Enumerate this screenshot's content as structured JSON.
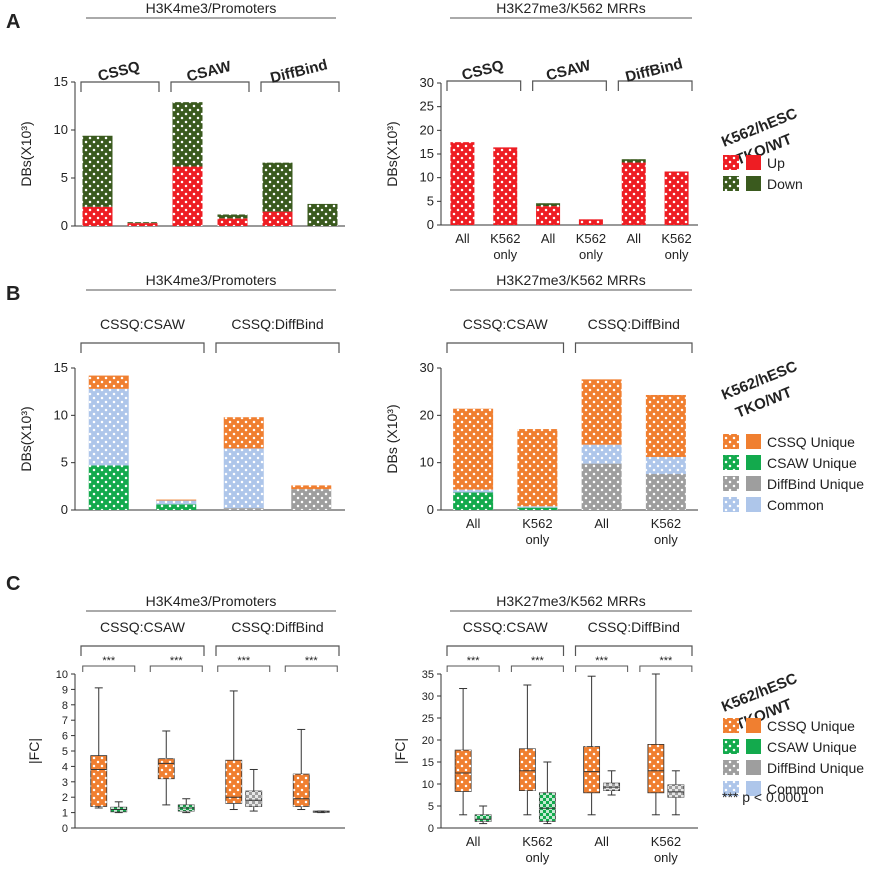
{
  "colors": {
    "up": "#ee1d23",
    "down": "#3a5a1e",
    "cssq_unique": "#f07f30",
    "csaw_unique": "#13aa4d",
    "diffbind_unique": "#9e9e9e",
    "common": "#aec6ea",
    "axis": "#333333",
    "bracket": "#555555"
  },
  "legend_a": {
    "title_lines": [
      "K562/hESC",
      "TKO/WT"
    ],
    "items": [
      {
        "label": "Up",
        "color_key": "up"
      },
      {
        "label": "Down",
        "color_key": "down"
      }
    ]
  },
  "legend_bc": {
    "title_lines": [
      "K562/hESC",
      "TKO/WT"
    ],
    "items": [
      {
        "label": "CSSQ Unique",
        "color_key": "cssq_unique"
      },
      {
        "label": "CSAW Unique",
        "color_key": "csaw_unique"
      },
      {
        "label": "DiffBind Unique",
        "color_key": "diffbind_unique"
      },
      {
        "label": "Common",
        "color_key": "common"
      }
    ]
  },
  "pvalue_note": "*** p < 0.0001",
  "chart_data": [
    {
      "id": "A1",
      "panel_letter": "A",
      "type": "bar",
      "stacked": true,
      "title": "H3K4me3/Promoters",
      "ylabel": "DBs(X10³)",
      "ylim": [
        0,
        15
      ],
      "ticks": [
        0,
        5,
        10,
        15
      ],
      "groups": [
        {
          "label": "CSSQ",
          "span": [
            0,
            1
          ]
        },
        {
          "label": "CSAW",
          "span": [
            2,
            3
          ]
        },
        {
          "label": "DiffBind",
          "span": [
            4,
            5
          ]
        }
      ],
      "categories": [
        "",
        "",
        "",
        "",
        "",
        ""
      ],
      "series": [
        {
          "name": "Up",
          "color_key": "up",
          "values": [
            2.0,
            0.3,
            6.2,
            0.8,
            1.5,
            0.0
          ]
        },
        {
          "name": "Down",
          "color_key": "down",
          "values": [
            7.4,
            0.1,
            6.7,
            0.4,
            5.1,
            2.3
          ]
        }
      ]
    },
    {
      "id": "A2",
      "type": "bar",
      "stacked": true,
      "title": "H3K27me3/K562 MRRs",
      "ylabel": "DBs(X10³)",
      "ylim": [
        0,
        30
      ],
      "ticks": [
        0,
        5,
        10,
        15,
        20,
        25,
        30
      ],
      "groups": [
        {
          "label": "CSSQ",
          "span": [
            0,
            1
          ]
        },
        {
          "label": "CSAW",
          "span": [
            2,
            3
          ]
        },
        {
          "label": "DiffBind",
          "span": [
            4,
            5
          ]
        }
      ],
      "categories": [
        "All",
        "K562 only",
        "All",
        "K562 only",
        "All",
        "K562 only"
      ],
      "series": [
        {
          "name": "Up",
          "color_key": "up",
          "values": [
            17.5,
            16.4,
            4.0,
            1.2,
            13.2,
            11.3
          ]
        },
        {
          "name": "Down",
          "color_key": "down",
          "values": [
            0.0,
            0.0,
            0.6,
            0.0,
            0.7,
            0.0
          ]
        }
      ]
    },
    {
      "id": "B1",
      "panel_letter": "B",
      "type": "bar",
      "stacked": true,
      "title": "H3K4me3/Promoters",
      "ylabel": "DBs(X10³)",
      "ylim": [
        0,
        15
      ],
      "ticks": [
        0,
        5,
        10,
        15
      ],
      "groups": [
        {
          "label": "CSSQ:CSAW",
          "span": [
            0,
            1
          ]
        },
        {
          "label": "CSSQ:DiffBind",
          "span": [
            2,
            3
          ]
        }
      ],
      "categories": [
        "",
        "",
        "",
        ""
      ],
      "series": [
        {
          "name": "CSAW Unique",
          "color_key": "csaw_unique",
          "values": [
            4.7,
            0.6,
            0.0,
            0.0
          ]
        },
        {
          "name": "DiffBind Unique",
          "color_key": "diffbind_unique",
          "values": [
            0.0,
            0.0,
            0.2,
            2.2
          ]
        },
        {
          "name": "Common",
          "color_key": "common",
          "values": [
            8.1,
            0.4,
            6.3,
            0.0
          ]
        },
        {
          "name": "CSSQ Unique",
          "color_key": "cssq_unique",
          "values": [
            1.4,
            0.1,
            3.3,
            0.4
          ]
        }
      ]
    },
    {
      "id": "B2",
      "type": "bar",
      "stacked": true,
      "title": "H3K27me3/K562 MRRs",
      "ylabel": "DBs (X10³)",
      "ylim": [
        0,
        30
      ],
      "ticks": [
        0,
        10,
        20,
        30
      ],
      "groups": [
        {
          "label": "CSSQ:CSAW",
          "span": [
            0,
            1
          ]
        },
        {
          "label": "CSSQ:DiffBind",
          "span": [
            2,
            3
          ]
        }
      ],
      "categories": [
        "All",
        "K562 only",
        "All",
        "K562 only"
      ],
      "series": [
        {
          "name": "CSAW Unique",
          "color_key": "csaw_unique",
          "values": [
            3.7,
            0.5,
            0.0,
            0.0
          ]
        },
        {
          "name": "DiffBind Unique",
          "color_key": "diffbind_unique",
          "values": [
            0.0,
            0.0,
            9.8,
            7.6
          ]
        },
        {
          "name": "Common",
          "color_key": "common",
          "values": [
            0.6,
            0.3,
            4.0,
            3.6
          ]
        },
        {
          "name": "CSSQ Unique",
          "color_key": "cssq_unique",
          "values": [
            17.1,
            16.3,
            13.8,
            13.1
          ]
        }
      ]
    },
    {
      "id": "C1",
      "panel_letter": "C",
      "type": "box",
      "title": "H3K4me3/Promoters",
      "ylabel": "|FC|",
      "ylim": [
        0,
        10
      ],
      "ticks": [
        0,
        1,
        2,
        3,
        4,
        5,
        6,
        7,
        8,
        9,
        10
      ],
      "groups": [
        {
          "label": "CSSQ:CSAW",
          "span": [
            0,
            1
          ]
        },
        {
          "label": "CSSQ:DiffBind",
          "span": [
            2,
            3
          ]
        }
      ],
      "categories": [
        "",
        "",
        "",
        ""
      ],
      "significance": "***",
      "pairs": [
        {
          "boxes": [
            {
              "color_key": "cssq_unique",
              "min": 1.3,
              "q1": 1.4,
              "median": 3.8,
              "q3": 4.7,
              "max": 9.1
            },
            {
              "color_key": "csaw_unique",
              "min": 1.0,
              "q1": 1.05,
              "median": 1.2,
              "q3": 1.35,
              "max": 1.7
            }
          ]
        },
        {
          "boxes": [
            {
              "color_key": "cssq_unique",
              "min": 1.5,
              "q1": 3.2,
              "median": 4.2,
              "q3": 4.5,
              "max": 6.3
            },
            {
              "color_key": "csaw_unique",
              "min": 1.0,
              "q1": 1.1,
              "median": 1.3,
              "q3": 1.5,
              "max": 1.9
            }
          ]
        },
        {
          "boxes": [
            {
              "color_key": "cssq_unique",
              "min": 1.2,
              "q1": 1.6,
              "median": 2.0,
              "q3": 4.4,
              "max": 8.9
            },
            {
              "color_key": "diffbind_unique",
              "min": 1.1,
              "q1": 1.4,
              "median": 1.8,
              "q3": 2.4,
              "max": 3.8
            }
          ]
        },
        {
          "boxes": [
            {
              "color_key": "cssq_unique",
              "min": 1.2,
              "q1": 1.4,
              "median": 1.9,
              "q3": 3.5,
              "max": 6.4
            },
            {
              "color_key": "diffbind_unique",
              "min": 1.0,
              "q1": 1.02,
              "median": 1.05,
              "q3": 1.1,
              "max": 1.1
            }
          ]
        }
      ]
    },
    {
      "id": "C2",
      "type": "box",
      "title": "H3K27me3/K562 MRRs",
      "ylabel": "|FC|",
      "ylim": [
        0,
        35
      ],
      "ticks": [
        0,
        5,
        10,
        15,
        20,
        25,
        30,
        35
      ],
      "groups": [
        {
          "label": "CSSQ:CSAW",
          "span": [
            0,
            1
          ]
        },
        {
          "label": "CSSQ:DiffBind",
          "span": [
            2,
            3
          ]
        }
      ],
      "categories": [
        "All",
        "K562 only",
        "All",
        "K562 only"
      ],
      "significance": "***",
      "pairs": [
        {
          "boxes": [
            {
              "color_key": "cssq_unique",
              "min": 3.0,
              "q1": 8.3,
              "median": 12.5,
              "q3": 17.7,
              "max": 31.7
            },
            {
              "color_key": "csaw_unique",
              "min": 1.0,
              "q1": 1.5,
              "median": 2.0,
              "q3": 3.0,
              "max": 5.0
            }
          ]
        },
        {
          "boxes": [
            {
              "color_key": "cssq_unique",
              "min": 3.0,
              "q1": 8.5,
              "median": 13.0,
              "q3": 18.0,
              "max": 32.5
            },
            {
              "color_key": "csaw_unique",
              "min": 1.0,
              "q1": 1.5,
              "median": 4.5,
              "q3": 8.0,
              "max": 15.0
            }
          ]
        },
        {
          "boxes": [
            {
              "color_key": "cssq_unique",
              "min": 3.0,
              "q1": 8.0,
              "median": 12.8,
              "q3": 18.5,
              "max": 34.5
            },
            {
              "color_key": "diffbind_unique",
              "min": 7.5,
              "q1": 8.5,
              "median": 9.3,
              "q3": 10.2,
              "max": 13.0
            }
          ]
        },
        {
          "boxes": [
            {
              "color_key": "cssq_unique",
              "min": 3.0,
              "q1": 8.0,
              "median": 13.0,
              "q3": 19.0,
              "max": 35.0
            },
            {
              "color_key": "diffbind_unique",
              "min": 3.0,
              "q1": 7.0,
              "median": 8.2,
              "q3": 9.8,
              "max": 13.0
            }
          ]
        }
      ]
    }
  ]
}
